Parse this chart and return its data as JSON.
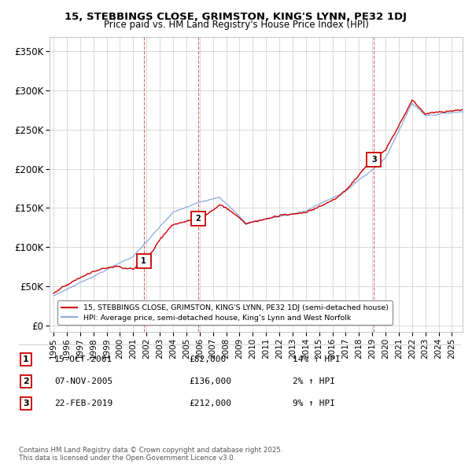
{
  "title1": "15, STEBBINGS CLOSE, GRIMSTON, KING'S LYNN, PE32 1DJ",
  "title2": "Price paid vs. HM Land Registry's House Price Index (HPI)",
  "yticks": [
    0,
    50000,
    100000,
    150000,
    200000,
    250000,
    300000,
    350000
  ],
  "ytick_labels": [
    "£0",
    "£50K",
    "£100K",
    "£150K",
    "£200K",
    "£250K",
    "£300K",
    "£350K"
  ],
  "sale_prices": [
    82000,
    136000,
    212000
  ],
  "sale_labels": [
    "1",
    "2",
    "3"
  ],
  "sale_info": [
    [
      "1",
      "15-OCT-2001",
      "£82,000",
      "14% ↑ HPI"
    ],
    [
      "2",
      "07-NOV-2005",
      "£136,000",
      "2% ↑ HPI"
    ],
    [
      "3",
      "22-FEB-2019",
      "£212,000",
      "9% ↑ HPI"
    ]
  ],
  "legend_line1": "15, STEBBINGS CLOSE, GRIMSTON, KING'S LYNN, PE32 1DJ (semi-detached house)",
  "legend_line2": "HPI: Average price, semi-detached house, King’s Lynn and West Norfolk",
  "footer": "Contains HM Land Registry data © Crown copyright and database right 2025.\nThis data is licensed under the Open Government Licence v3.0.",
  "line_color_price": "#cc0000",
  "line_color_hpi": "#88aadd",
  "vline_color": "#cc0000",
  "grid_color": "#cccccc",
  "background_color": "#ffffff",
  "xlim_start": 1994.7,
  "xlim_end": 2025.8,
  "ylim_min": -8000,
  "ylim_max": 368000
}
